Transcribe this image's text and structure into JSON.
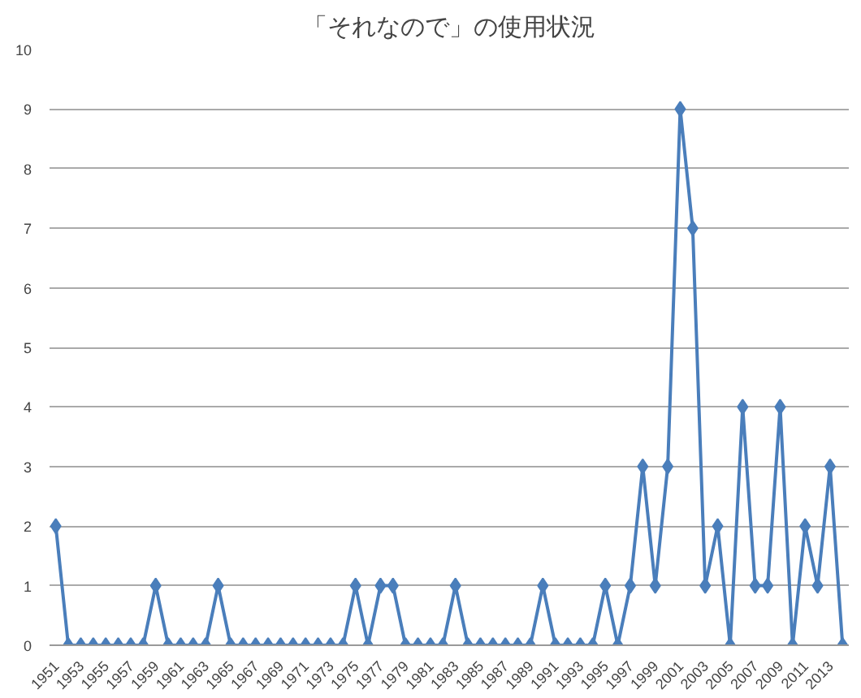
{
  "chart_data": {
    "type": "line",
    "title": "「それなので」の使用状況",
    "categories": [
      "1951",
      null,
      "1953",
      null,
      "1955",
      null,
      "1957",
      null,
      "1959",
      null,
      "1961",
      null,
      "1963",
      null,
      "1965",
      null,
      "1967",
      null,
      "1969",
      null,
      "1971",
      null,
      "1973",
      null,
      "1975",
      null,
      "1977",
      null,
      "1979",
      null,
      "1981",
      null,
      "1983",
      null,
      "1985",
      null,
      "1987",
      null,
      "1989",
      null,
      "1991",
      null,
      "1993",
      null,
      "1995",
      null,
      "1997",
      null,
      "1999",
      null,
      "2001",
      null,
      "2003",
      null,
      "2005",
      null,
      "2007",
      null,
      "2009",
      null,
      "2011",
      null,
      "2013",
      null
    ],
    "series": [
      {
        "color": "#4a7ebb",
        "values": [
          2,
          0,
          0,
          0,
          0,
          0,
          0,
          0,
          1,
          0,
          0,
          0,
          0,
          1,
          0,
          0,
          0,
          0,
          0,
          0,
          0,
          0,
          0,
          0,
          1,
          0,
          1,
          1,
          0,
          0,
          0,
          0,
          1,
          0,
          0,
          0,
          0,
          0,
          0,
          1,
          0,
          0,
          0,
          0,
          1,
          0,
          1,
          3,
          1,
          3,
          9,
          7,
          1,
          2,
          0,
          4,
          1,
          1,
          4,
          0,
          2,
          1,
          3,
          0
        ]
      }
    ],
    "ylim": [
      0,
      10
    ],
    "yticks": [
      0,
      1,
      2,
      3,
      4,
      5,
      6,
      7,
      8,
      9,
      10
    ],
    "grid": "y",
    "marker": "diamond",
    "line_style": "solid"
  }
}
